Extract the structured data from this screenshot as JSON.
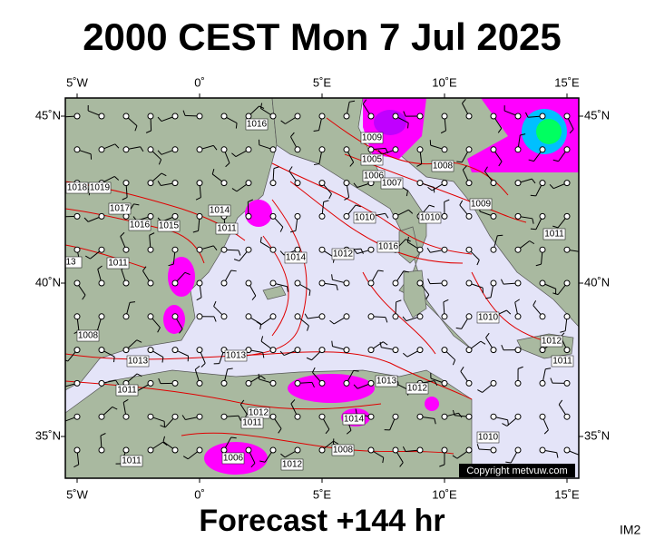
{
  "header": {
    "title": "2000 CEST Mon 7 Jul 2025"
  },
  "map": {
    "lon_labels": [
      "5˚W",
      "0˚",
      "5˚E",
      "10˚E",
      "15˚E"
    ],
    "lat_labels": [
      "45˚N",
      "40˚N",
      "35˚N"
    ],
    "isobar_labels": [
      "1016",
      "1009",
      "1005",
      "1006",
      "1007",
      "1008",
      "1009",
      "1010",
      "1010",
      "1016",
      "1014",
      "1012",
      "1011",
      "1010",
      "1012",
      "1011",
      "1013",
      "1013",
      "1011",
      "1011",
      "1015",
      "1016",
      "1017",
      "1018",
      "1019",
      "1014",
      "1011",
      "1013",
      "1012",
      "1014",
      "1012",
      "1011",
      "1008",
      "1010",
      "1006",
      "1012",
      "1008",
      "13",
      "1011"
    ],
    "copyright": "Copyright metvuw.com"
  },
  "footer": {
    "forecast": "Forecast +144 hr",
    "code": "IM2"
  }
}
